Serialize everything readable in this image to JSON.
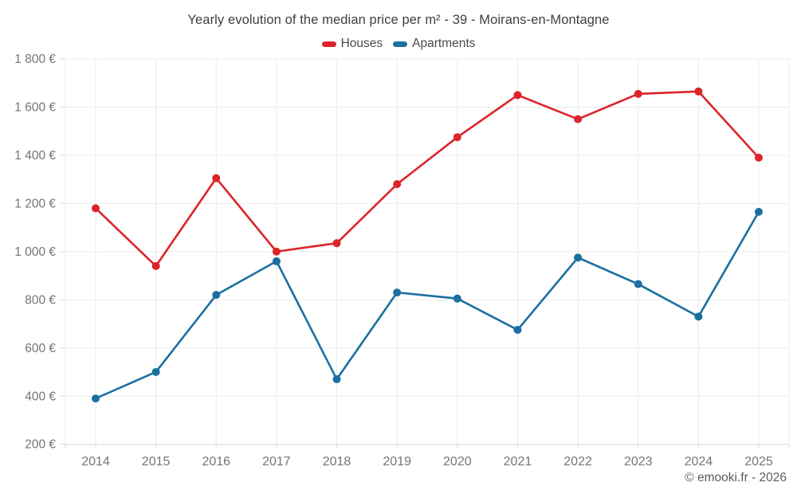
{
  "chart_data": {
    "type": "line",
    "title": "Yearly evolution of the median price per m² - 39 - Moirans-en-Montagne",
    "categories": [
      "2014",
      "2015",
      "2016",
      "2017",
      "2018",
      "2019",
      "2020",
      "2021",
      "2022",
      "2023",
      "2024",
      "2025"
    ],
    "series": [
      {
        "name": "Houses",
        "color": "#dc2429",
        "values": [
          1180,
          940,
          1305,
          1000,
          1035,
          1280,
          1475,
          1650,
          1550,
          1655,
          1665,
          1390
        ]
      },
      {
        "name": "Apartments",
        "color": "#1b6fa0",
        "values": [
          390,
          500,
          820,
          960,
          470,
          830,
          805,
          675,
          975,
          865,
          730,
          1165
        ]
      }
    ],
    "xlabel": "",
    "ylabel": "",
    "ylim": [
      200,
      1800
    ],
    "ytick_step": 200,
    "ytick_labels": [
      "200 €",
      "400 €",
      "600 €",
      "800 €",
      "1 000 €",
      "1 200 €",
      "1 400 €",
      "1 600 €",
      "1 800 €"
    ],
    "currency": "€",
    "grid": true,
    "legend_position": "top-center"
  },
  "footer": {
    "text": "© emooki.fr - 2026"
  },
  "colors": {
    "background": "#ffffff",
    "grid": "#ececec",
    "axis": "#d9d9d9",
    "tick_text": "#757575",
    "title_text": "#3f3f3f",
    "legend_text": "#4a4a4a",
    "footer_text": "#5c5c5c",
    "houses": "#dc2429",
    "apartments": "#1b6fa0"
  }
}
